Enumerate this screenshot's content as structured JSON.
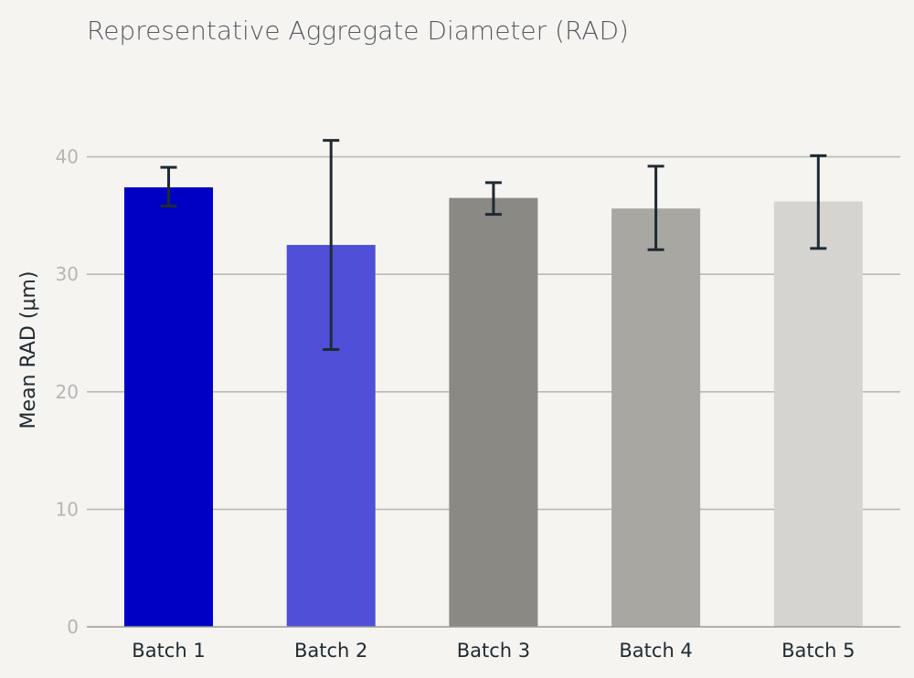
{
  "chart_data": {
    "type": "bar",
    "title": "Representative Aggregate Diameter (RAD)",
    "xlabel": "",
    "ylabel": "Mean RAD (μm)",
    "ylim": [
      0,
      42
    ],
    "yticks": [
      0,
      10,
      20,
      30,
      40
    ],
    "grid": true,
    "categories": [
      "Batch 1",
      "Batch 2",
      "Batch 3",
      "Batch 4",
      "Batch 5"
    ],
    "values": [
      37.4,
      32.5,
      36.5,
      35.6,
      36.2
    ],
    "error_low": [
      35.8,
      23.6,
      35.1,
      32.1,
      32.2
    ],
    "error_high": [
      39.1,
      41.4,
      37.8,
      39.2,
      40.1
    ],
    "colors": [
      "#0000c4",
      "#4f4fd8",
      "#8a8984",
      "#a8a7a2",
      "#d5d4d0"
    ],
    "error_color": "#1f2a33"
  }
}
